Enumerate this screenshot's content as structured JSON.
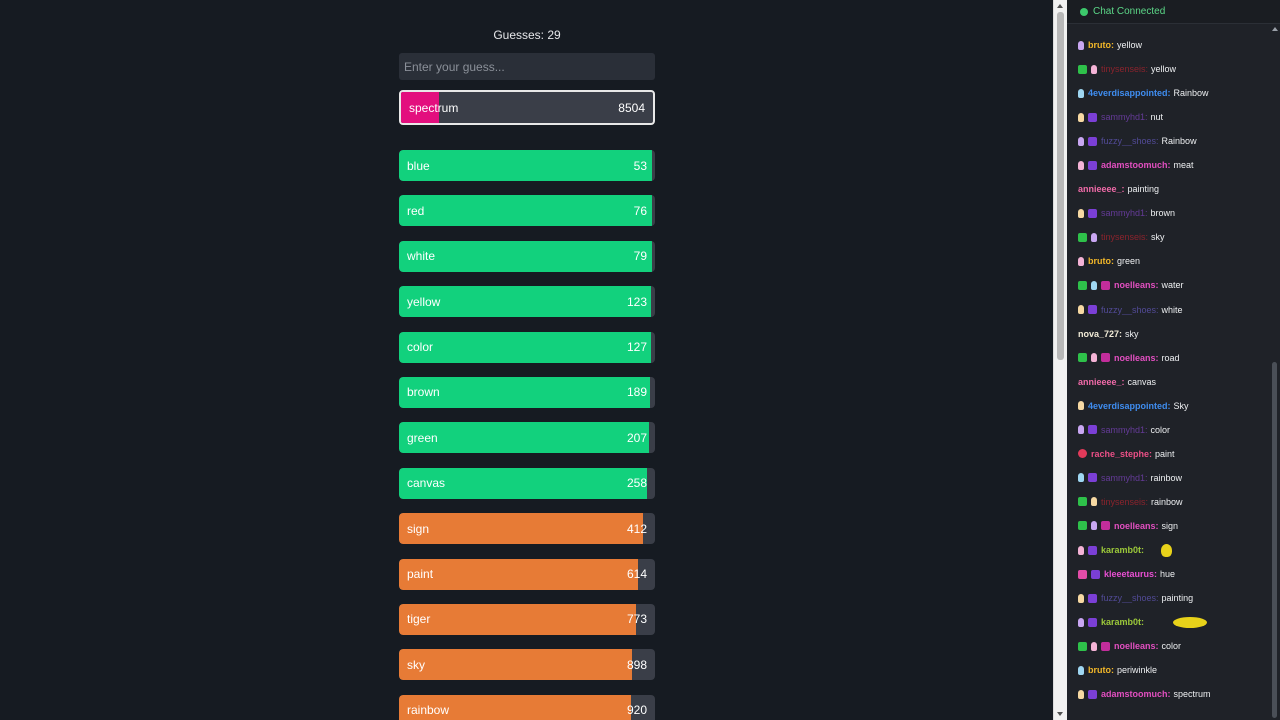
{
  "game": {
    "guesses_label": "Guesses: 29",
    "input_placeholder": "Enter your guess...",
    "current_guess": {
      "word": "spectrum",
      "rank": 8504,
      "fill_fraction": 0.15,
      "color": "#e30f7e"
    },
    "guesses": [
      {
        "word": "blue",
        "rank": "53",
        "fill_fraction": 0.99,
        "color": "#12d17d"
      },
      {
        "word": "red",
        "rank": "76",
        "fill_fraction": 0.99,
        "color": "#12d17d"
      },
      {
        "word": "white",
        "rank": "79",
        "fill_fraction": 0.99,
        "color": "#12d17d"
      },
      {
        "word": "yellow",
        "rank": "123",
        "fill_fraction": 0.985,
        "color": "#12d17d"
      },
      {
        "word": "color",
        "rank": "127",
        "fill_fraction": 0.985,
        "color": "#12d17d"
      },
      {
        "word": "brown",
        "rank": "189",
        "fill_fraction": 0.98,
        "color": "#12d17d"
      },
      {
        "word": "green",
        "rank": "207",
        "fill_fraction": 0.975,
        "color": "#12d17d"
      },
      {
        "word": "canvas",
        "rank": "258",
        "fill_fraction": 0.97,
        "color": "#12d17d"
      },
      {
        "word": "sign",
        "rank": "412",
        "fill_fraction": 0.955,
        "color": "#e77b36"
      },
      {
        "word": "paint",
        "rank": "614",
        "fill_fraction": 0.935,
        "color": "#e77b36"
      },
      {
        "word": "tiger",
        "rank": "773",
        "fill_fraction": 0.925,
        "color": "#e77b36"
      },
      {
        "word": "sky",
        "rank": "898",
        "fill_fraction": 0.91,
        "color": "#e77b36"
      },
      {
        "word": "rainbow",
        "rank": "920",
        "fill_fraction": 0.905,
        "color": "#e77b36"
      }
    ]
  },
  "chat": {
    "status": "Chat Connected",
    "status_color": "#3cc86b",
    "messages": [
      {
        "user": "bruto:",
        "text": "yellow",
        "color": "#f2b729",
        "badges": [
          "hand"
        ]
      },
      {
        "user": "tinysenseis:",
        "text": "yellow",
        "color": "#e02531",
        "dim": true,
        "badges": [
          "mod",
          "hand"
        ]
      },
      {
        "user": "4everdisappointed:",
        "text": "Rainbow",
        "color": "#3f8df0",
        "badges": [
          "hand"
        ]
      },
      {
        "user": "sammyhd1:",
        "text": "nut",
        "color": "#9b4ff0",
        "dim": true,
        "badges": [
          "hand",
          "sub"
        ]
      },
      {
        "user": "fuzzy__shoes:",
        "text": "Rainbow",
        "color": "#7b6bf0",
        "dim": true,
        "badges": [
          "hand",
          "sub"
        ]
      },
      {
        "user": "adamstoomuch:",
        "text": "meat",
        "color": "#e24fc0",
        "badges": [
          "hand",
          "sub"
        ]
      },
      {
        "user": "annieeee_:",
        "text": "painting",
        "color": "#f06aa8",
        "badges": []
      },
      {
        "user": "sammyhd1:",
        "text": "brown",
        "color": "#9b4ff0",
        "dim": true,
        "badges": [
          "hand",
          "sub"
        ]
      },
      {
        "user": "tinysenseis:",
        "text": "sky",
        "color": "#e02531",
        "dim": true,
        "badges": [
          "mod",
          "hand"
        ]
      },
      {
        "user": "bruto:",
        "text": "green",
        "color": "#f2b729",
        "badges": [
          "hand"
        ]
      },
      {
        "user": "noelleans:",
        "text": "water",
        "color": "#e24fc0",
        "badges": [
          "mod",
          "hand",
          "gift"
        ]
      },
      {
        "user": "fuzzy__shoes:",
        "text": "white",
        "color": "#7b6bf0",
        "dim": true,
        "badges": [
          "hand",
          "sub"
        ]
      },
      {
        "user": "nova_727:",
        "text": "sky",
        "color": "#f2ecd8",
        "badges": []
      },
      {
        "user": "noelleans:",
        "text": "road",
        "color": "#e24fc0",
        "badges": [
          "mod",
          "hand",
          "gift"
        ]
      },
      {
        "user": "annieeee_:",
        "text": "canvas",
        "color": "#f06aa8",
        "badges": []
      },
      {
        "user": "4everdisappointed:",
        "text": "Sky",
        "color": "#3f8df0",
        "badges": [
          "hand"
        ]
      },
      {
        "user": "sammyhd1:",
        "text": "color",
        "color": "#9b4ff0",
        "dim": true,
        "badges": [
          "hand",
          "sub"
        ]
      },
      {
        "user": "rache_stephe:",
        "text": "paint",
        "color": "#ea4f86",
        "badges": [
          "heart"
        ]
      },
      {
        "user": "sammyhd1:",
        "text": "rainbow",
        "color": "#9b4ff0",
        "dim": true,
        "badges": [
          "hand",
          "sub"
        ]
      },
      {
        "user": "tinysenseis:",
        "text": "rainbow",
        "color": "#e02531",
        "dim": true,
        "badges": [
          "mod",
          "hand"
        ]
      },
      {
        "user": "noelleans:",
        "text": "sign",
        "color": "#e24fc0",
        "badges": [
          "mod",
          "hand",
          "gift"
        ]
      },
      {
        "user": "karamb0t:",
        "text": "",
        "color": "#9cc93a",
        "badges": [
          "hand",
          "sub"
        ],
        "emote": "small"
      },
      {
        "user": "kleeetaurus:",
        "text": "hue",
        "color": "#e84fd2",
        "badges": [
          "vip",
          "sub"
        ]
      },
      {
        "user": "fuzzy__shoes:",
        "text": "painting",
        "color": "#7b6bf0",
        "dim": true,
        "badges": [
          "hand",
          "sub"
        ]
      },
      {
        "user": "karamb0t:",
        "text": "",
        "color": "#9cc93a",
        "badges": [
          "hand",
          "sub"
        ],
        "emote": "wide"
      },
      {
        "user": "noelleans:",
        "text": "color",
        "color": "#e24fc0",
        "badges": [
          "mod",
          "hand",
          "gift"
        ]
      },
      {
        "user": "bruto:",
        "text": "periwinkle",
        "color": "#f2b729",
        "badges": [
          "hand"
        ]
      },
      {
        "user": "adamstoomuch:",
        "text": "spectrum",
        "color": "#e24fc0",
        "badges": [
          "hand",
          "sub"
        ]
      }
    ]
  }
}
